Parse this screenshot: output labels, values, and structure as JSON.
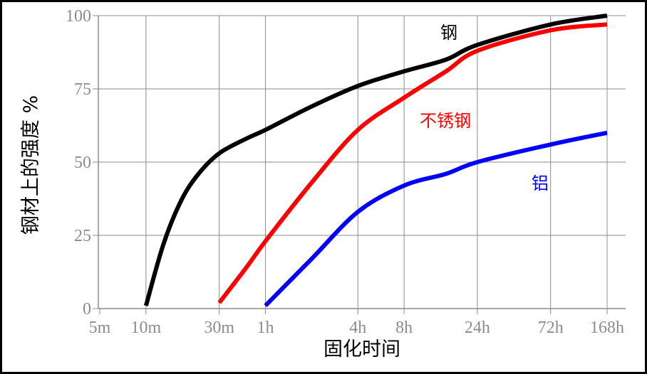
{
  "chart_data": {
    "type": "line",
    "xlabel": "固化时间",
    "ylabel": "钢材上的强度 %",
    "x_scale": "log",
    "x_ticks": [
      {
        "label": "5m",
        "minutes": 5
      },
      {
        "label": "10m",
        "minutes": 10
      },
      {
        "label": "30m",
        "minutes": 30
      },
      {
        "label": "1h",
        "minutes": 60
      },
      {
        "label": "4h",
        "minutes": 240
      },
      {
        "label": "8h",
        "minutes": 480
      },
      {
        "label": "24h",
        "minutes": 1440
      },
      {
        "label": "72h",
        "minutes": 4320
      },
      {
        "label": "168h",
        "minutes": 10080
      }
    ],
    "y_ticks": [
      0,
      25,
      50,
      75,
      100
    ],
    "ylim": [
      0,
      100
    ],
    "grid": true,
    "series": [
      {
        "name": "钢",
        "color": "#000000",
        "points": [
          {
            "minutes": 10,
            "value": 1
          },
          {
            "minutes": 13,
            "value": 22
          },
          {
            "minutes": 17,
            "value": 37
          },
          {
            "minutes": 22,
            "value": 46
          },
          {
            "minutes": 30,
            "value": 53
          },
          {
            "minutes": 45,
            "value": 58
          },
          {
            "minutes": 60,
            "value": 61
          },
          {
            "minutes": 120,
            "value": 69
          },
          {
            "minutes": 240,
            "value": 76
          },
          {
            "minutes": 480,
            "value": 81
          },
          {
            "minutes": 900,
            "value": 85
          },
          {
            "minutes": 1440,
            "value": 90
          },
          {
            "minutes": 4320,
            "value": 97
          },
          {
            "minutes": 10080,
            "value": 100
          }
        ]
      },
      {
        "name": "不锈钢",
        "color": "#ff0000",
        "points": [
          {
            "minutes": 30,
            "value": 2
          },
          {
            "minutes": 45,
            "value": 14
          },
          {
            "minutes": 60,
            "value": 23
          },
          {
            "minutes": 120,
            "value": 43
          },
          {
            "minutes": 240,
            "value": 61
          },
          {
            "minutes": 480,
            "value": 72
          },
          {
            "minutes": 900,
            "value": 81
          },
          {
            "minutes": 1440,
            "value": 88
          },
          {
            "minutes": 4320,
            "value": 95
          },
          {
            "minutes": 10080,
            "value": 97
          }
        ]
      },
      {
        "name": "铝",
        "color": "#0000ff",
        "points": [
          {
            "minutes": 60,
            "value": 1
          },
          {
            "minutes": 120,
            "value": 17
          },
          {
            "minutes": 240,
            "value": 33
          },
          {
            "minutes": 480,
            "value": 42
          },
          {
            "minutes": 900,
            "value": 46
          },
          {
            "minutes": 1440,
            "value": 50
          },
          {
            "minutes": 4320,
            "value": 56
          },
          {
            "minutes": 10080,
            "value": 60
          }
        ]
      }
    ]
  }
}
